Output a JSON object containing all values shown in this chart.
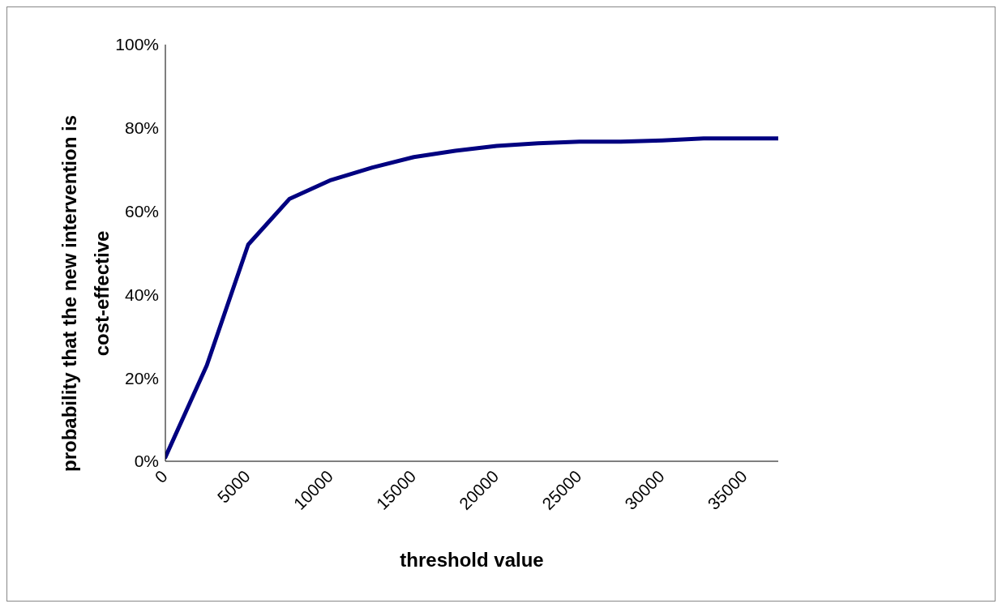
{
  "chart_data": {
    "type": "line",
    "xlabel": "threshold value",
    "ylabel": "probability that the new intervention is cost-effective",
    "x": [
      0,
      2500,
      5000,
      7500,
      10000,
      12500,
      15000,
      17500,
      20000,
      22500,
      25000,
      27500,
      30000,
      32500,
      35000,
      37000
    ],
    "series": [
      {
        "color": "#000080",
        "values": [
          1,
          23,
          52,
          63,
          67.5,
          70.5,
          73,
          74.5,
          75.7,
          76.3,
          76.7,
          76.7,
          77,
          77.5,
          77.5,
          77.5
        ]
      }
    ],
    "xlim": [
      0,
      37000
    ],
    "xticks": [
      0,
      5000,
      10000,
      15000,
      20000,
      25000,
      30000,
      35000
    ],
    "ylim": [
      0,
      100
    ],
    "yticks": [
      {
        "value": 0,
        "label": "0%"
      },
      {
        "value": 20,
        "label": "20%"
      },
      {
        "value": 40,
        "label": "40%"
      },
      {
        "value": 60,
        "label": "60%"
      },
      {
        "value": 80,
        "label": "80%"
      },
      {
        "value": 100,
        "label": "100%"
      }
    ],
    "grid": false,
    "legend": false,
    "marker": "none",
    "line_style": "solid"
  }
}
